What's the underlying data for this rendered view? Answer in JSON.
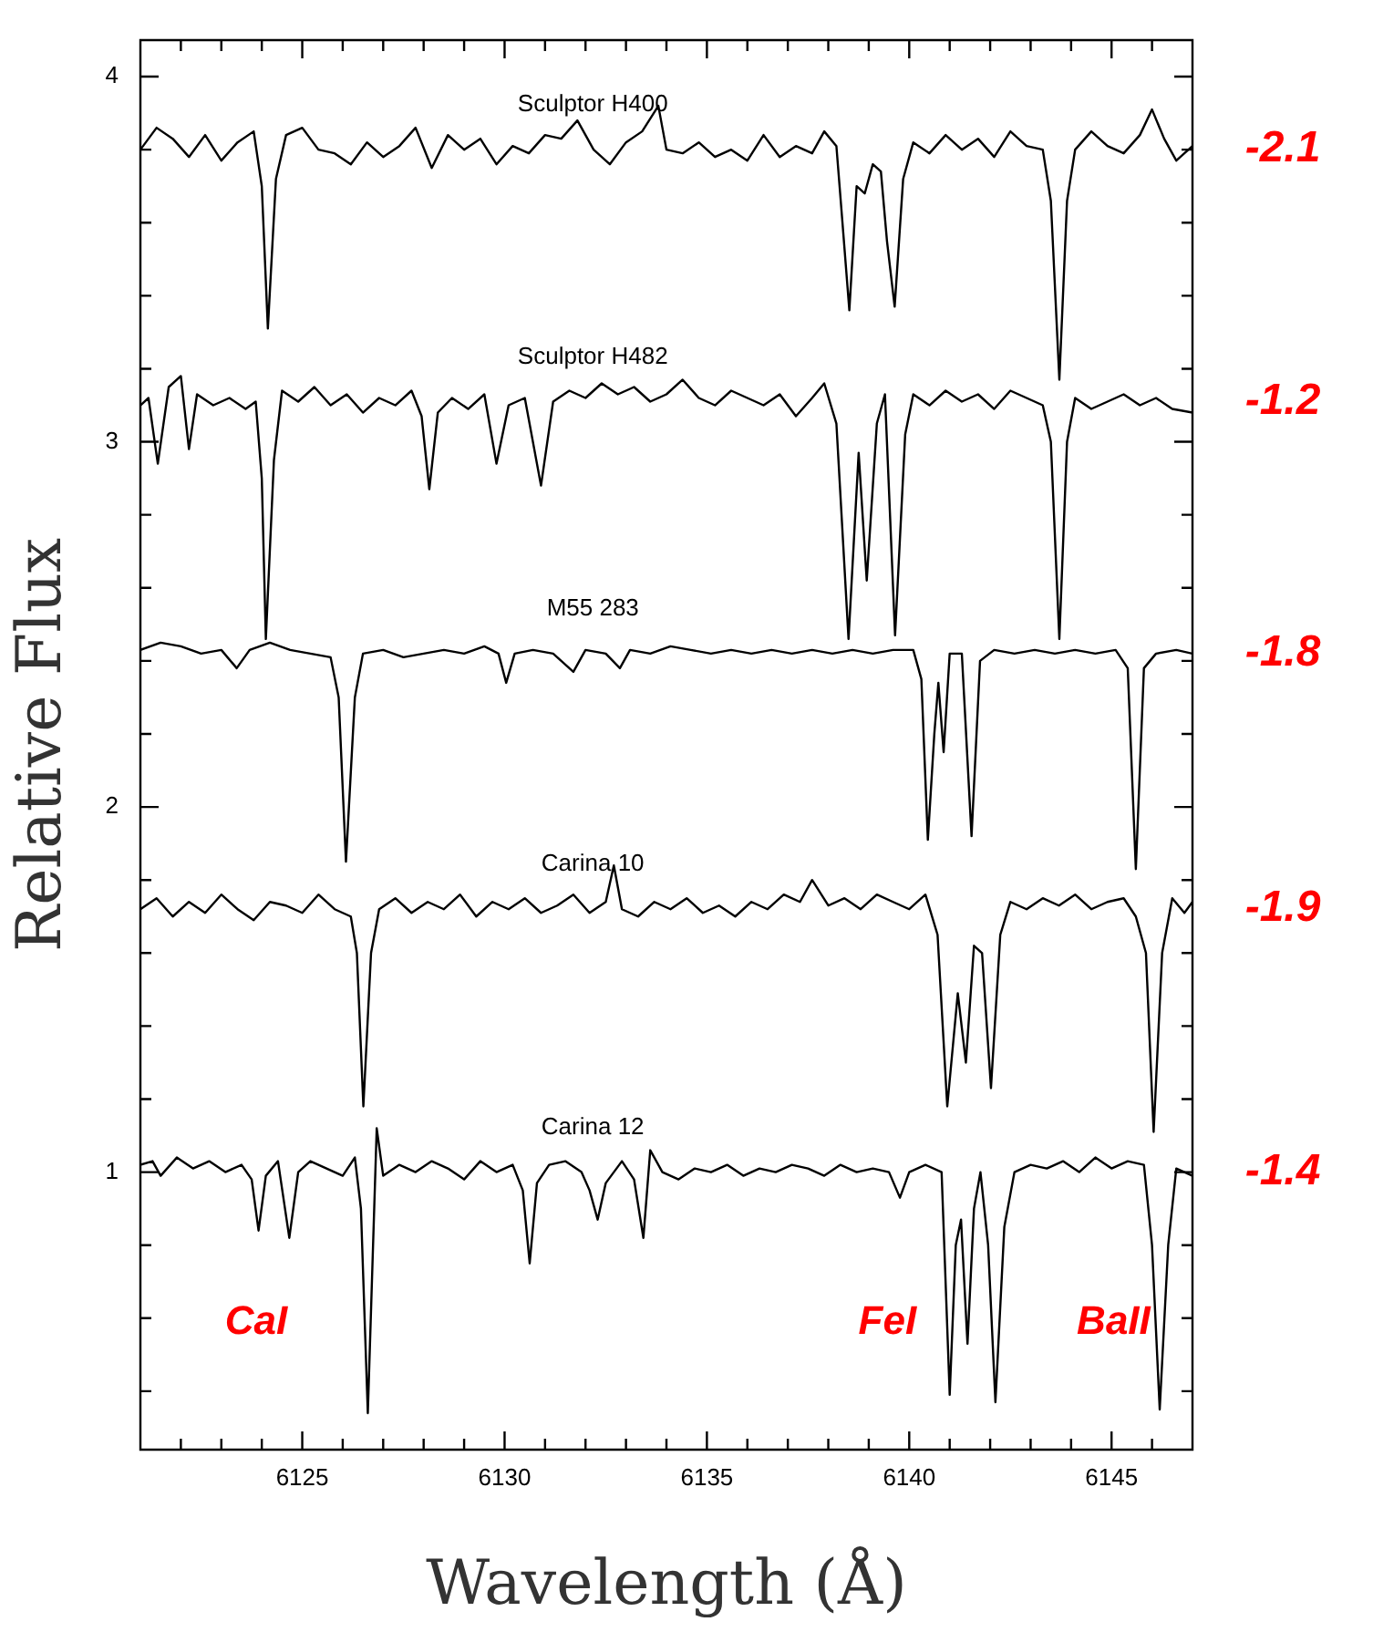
{
  "chart_data": {
    "type": "line",
    "xlabel": "Wavelength (Å)",
    "ylabel": "Relative Flux",
    "xlim": [
      6121,
      6147
    ],
    "ylim": [
      0.24,
      4.1
    ],
    "xticks": [
      {
        "value": 6122,
        "label": null
      },
      {
        "value": 6123,
        "label": null
      },
      {
        "value": 6124,
        "label": null
      },
      6125,
      {
        "value": 6126,
        "label": null
      },
      {
        "value": 6127,
        "label": null
      },
      {
        "value": 6128,
        "label": null
      },
      {
        "value": 6129,
        "label": null
      },
      6130,
      {
        "value": 6131,
        "label": null
      },
      {
        "value": 6132,
        "label": null
      },
      {
        "value": 6133,
        "label": null
      },
      {
        "value": 6134,
        "label": null
      },
      6135,
      {
        "value": 6136,
        "label": null
      },
      {
        "value": 6137,
        "label": null
      },
      {
        "value": 6138,
        "label": null
      },
      {
        "value": 6139,
        "label": null
      },
      6140,
      {
        "value": 6141,
        "label": null
      },
      {
        "value": 6142,
        "label": null
      },
      {
        "value": 6143,
        "label": null
      },
      {
        "value": 6144,
        "label": null
      },
      6145,
      {
        "value": 6146,
        "label": null
      }
    ],
    "yticks": [
      {
        "value": 0.4,
        "label": null
      },
      {
        "value": 0.6,
        "label": null
      },
      {
        "value": 0.8,
        "label": null
      },
      1,
      {
        "value": 1.2,
        "label": null
      },
      {
        "value": 1.4,
        "label": null
      },
      {
        "value": 1.6,
        "label": null
      },
      {
        "value": 1.8,
        "label": null
      },
      2,
      {
        "value": 2.2,
        "label": null
      },
      {
        "value": 2.4,
        "label": null
      },
      {
        "value": 2.6,
        "label": null
      },
      {
        "value": 2.8,
        "label": null
      },
      3,
      {
        "value": 3.2,
        "label": null
      },
      {
        "value": 3.4,
        "label": null
      },
      {
        "value": 3.6,
        "label": null
      },
      {
        "value": 3.8,
        "label": null
      },
      4
    ],
    "grid": false,
    "legend": false,
    "marker": "none",
    "line_style": "solid",
    "series": [
      {
        "name": "Sculptor H400",
        "color": "#000000",
        "x": [
          6121.0,
          6121.4,
          6121.8,
          6122.2,
          6122.6,
          6123.0,
          6123.4,
          6123.8,
          6124.0,
          6124.15,
          6124.35,
          6124.6,
          6125.0,
          6125.4,
          6125.8,
          6126.2,
          6126.6,
          6127.0,
          6127.4,
          6127.8,
          6128.2,
          6128.6,
          6129.0,
          6129.4,
          6129.8,
          6130.2,
          6130.6,
          6131.0,
          6131.4,
          6131.8,
          6132.2,
          6132.6,
          6133.0,
          6133.4,
          6133.8,
          6134.0,
          6134.4,
          6134.8,
          6135.2,
          6135.6,
          6136.0,
          6136.4,
          6136.8,
          6137.2,
          6137.6,
          6137.9,
          6138.2,
          6138.35,
          6138.52,
          6138.7,
          6138.9,
          6139.1,
          6139.3,
          6139.45,
          6139.64,
          6139.85,
          6140.1,
          6140.5,
          6140.9,
          6141.3,
          6141.7,
          6142.1,
          6142.5,
          6142.9,
          6143.3,
          6143.5,
          6143.71,
          6143.9,
          6144.1,
          6144.5,
          6144.9,
          6145.3,
          6145.7,
          6146.0,
          6146.3,
          6146.6,
          6147.0
        ],
        "values": [
          3.8,
          3.86,
          3.83,
          3.78,
          3.84,
          3.77,
          3.82,
          3.85,
          3.7,
          3.31,
          3.72,
          3.84,
          3.86,
          3.8,
          3.79,
          3.76,
          3.82,
          3.78,
          3.81,
          3.86,
          3.75,
          3.84,
          3.8,
          3.83,
          3.76,
          3.81,
          3.79,
          3.84,
          3.83,
          3.88,
          3.8,
          3.76,
          3.82,
          3.85,
          3.92,
          3.8,
          3.79,
          3.82,
          3.78,
          3.8,
          3.77,
          3.84,
          3.78,
          3.81,
          3.79,
          3.85,
          3.81,
          3.6,
          3.36,
          3.7,
          3.68,
          3.76,
          3.74,
          3.55,
          3.37,
          3.72,
          3.82,
          3.79,
          3.84,
          3.8,
          3.83,
          3.78,
          3.85,
          3.81,
          3.8,
          3.66,
          3.17,
          3.66,
          3.8,
          3.85,
          3.81,
          3.79,
          3.84,
          3.91,
          3.83,
          3.77,
          3.81
        ]
      },
      {
        "name": "Sculptor H482",
        "color": "#000000",
        "x": [
          6121.0,
          6121.2,
          6121.43,
          6121.7,
          6122.0,
          6122.2,
          6122.4,
          6122.8,
          6123.2,
          6123.6,
          6123.85,
          6124.0,
          6124.1,
          6124.3,
          6124.5,
          6124.9,
          6125.3,
          6125.7,
          6126.1,
          6126.5,
          6126.9,
          6127.3,
          6127.7,
          6127.95,
          6128.14,
          6128.35,
          6128.7,
          6129.1,
          6129.5,
          6129.8,
          6130.1,
          6130.5,
          6130.9,
          6131.2,
          6131.6,
          6132.0,
          6132.4,
          6132.8,
          6133.2,
          6133.6,
          6134.0,
          6134.4,
          6134.8,
          6135.2,
          6135.6,
          6136.0,
          6136.4,
          6136.8,
          6137.2,
          6137.6,
          6137.9,
          6138.2,
          6138.5,
          6138.75,
          6138.95,
          6139.2,
          6139.4,
          6139.65,
          6139.9,
          6140.1,
          6140.5,
          6140.9,
          6141.3,
          6141.7,
          6142.1,
          6142.5,
          6142.9,
          6143.3,
          6143.5,
          6143.71,
          6143.9,
          6144.1,
          6144.5,
          6144.9,
          6145.3,
          6145.7,
          6146.1,
          6146.5,
          6147.0
        ],
        "values": [
          3.1,
          3.12,
          2.94,
          3.15,
          3.18,
          2.98,
          3.13,
          3.1,
          3.12,
          3.09,
          3.11,
          2.9,
          2.46,
          2.95,
          3.14,
          3.11,
          3.15,
          3.1,
          3.13,
          3.08,
          3.12,
          3.1,
          3.14,
          3.07,
          2.87,
          3.08,
          3.12,
          3.09,
          3.13,
          2.94,
          3.1,
          3.12,
          2.88,
          3.11,
          3.14,
          3.12,
          3.16,
          3.13,
          3.15,
          3.11,
          3.13,
          3.17,
          3.12,
          3.1,
          3.14,
          3.12,
          3.1,
          3.13,
          3.07,
          3.12,
          3.16,
          3.05,
          2.46,
          2.97,
          2.62,
          3.05,
          3.13,
          2.47,
          3.02,
          3.13,
          3.1,
          3.14,
          3.11,
          3.13,
          3.09,
          3.14,
          3.12,
          3.1,
          3.0,
          2.46,
          3.0,
          3.12,
          3.09,
          3.11,
          3.13,
          3.1,
          3.12,
          3.09,
          3.08
        ]
      },
      {
        "name": "M55 283",
        "color": "#000000",
        "x": [
          6121.0,
          6121.5,
          6122.0,
          6122.5,
          6123.0,
          6123.38,
          6123.7,
          6124.2,
          6124.7,
          6125.2,
          6125.7,
          6125.9,
          6126.08,
          6126.3,
          6126.5,
          6127.0,
          6127.5,
          6128.0,
          6128.5,
          6129.0,
          6129.5,
          6129.85,
          6130.04,
          6130.25,
          6130.7,
          6131.2,
          6131.7,
          6132.0,
          6132.5,
          6132.85,
          6133.1,
          6133.6,
          6134.1,
          6134.6,
          6135.1,
          6135.6,
          6136.1,
          6136.6,
          6137.1,
          6137.6,
          6138.1,
          6138.6,
          6139.1,
          6139.6,
          6140.1,
          6140.3,
          6140.46,
          6140.62,
          6140.72,
          6140.85,
          6141.0,
          6141.3,
          6141.54,
          6141.75,
          6142.1,
          6142.6,
          6143.1,
          6143.6,
          6144.1,
          6144.6,
          6145.1,
          6145.4,
          6145.6,
          6145.8,
          6146.1,
          6146.6,
          6147.0
        ],
        "values": [
          2.43,
          2.45,
          2.44,
          2.42,
          2.43,
          2.38,
          2.43,
          2.45,
          2.43,
          2.42,
          2.41,
          2.3,
          1.85,
          2.3,
          2.42,
          2.43,
          2.41,
          2.42,
          2.43,
          2.42,
          2.44,
          2.42,
          2.34,
          2.42,
          2.43,
          2.42,
          2.37,
          2.43,
          2.42,
          2.38,
          2.43,
          2.42,
          2.44,
          2.43,
          2.42,
          2.43,
          2.42,
          2.43,
          2.42,
          2.43,
          2.42,
          2.43,
          2.42,
          2.43,
          2.43,
          2.35,
          1.91,
          2.2,
          2.34,
          2.15,
          2.42,
          2.42,
          1.92,
          2.4,
          2.43,
          2.42,
          2.43,
          2.42,
          2.43,
          2.42,
          2.43,
          2.38,
          1.83,
          2.38,
          2.42,
          2.43,
          2.42
        ]
      },
      {
        "name": "Carina 10",
        "color": "#000000",
        "x": [
          6121.0,
          6121.4,
          6121.8,
          6122.2,
          6122.6,
          6123.0,
          6123.4,
          6123.8,
          6124.2,
          6124.6,
          6125.0,
          6125.4,
          6125.8,
          6126.2,
          6126.35,
          6126.51,
          6126.7,
          6126.9,
          6127.3,
          6127.7,
          6128.1,
          6128.5,
          6128.9,
          6129.3,
          6129.7,
          6130.1,
          6130.5,
          6130.9,
          6131.3,
          6131.7,
          6132.1,
          6132.5,
          6132.7,
          6132.9,
          6133.3,
          6133.7,
          6134.1,
          6134.5,
          6134.9,
          6135.3,
          6135.7,
          6136.1,
          6136.5,
          6136.9,
          6137.3,
          6137.6,
          6138.0,
          6138.4,
          6138.8,
          6139.2,
          6139.6,
          6140.0,
          6140.4,
          6140.7,
          6140.94,
          6141.2,
          6141.4,
          6141.6,
          6141.8,
          6142.02,
          6142.25,
          6142.5,
          6142.9,
          6143.3,
          6143.7,
          6144.1,
          6144.5,
          6144.9,
          6145.3,
          6145.6,
          6145.85,
          6146.04,
          6146.25,
          6146.5,
          6146.8,
          6147.0
        ],
        "values": [
          1.72,
          1.75,
          1.7,
          1.74,
          1.71,
          1.76,
          1.72,
          1.69,
          1.74,
          1.73,
          1.71,
          1.76,
          1.72,
          1.7,
          1.6,
          1.18,
          1.6,
          1.72,
          1.75,
          1.71,
          1.74,
          1.72,
          1.76,
          1.7,
          1.74,
          1.72,
          1.75,
          1.71,
          1.73,
          1.76,
          1.71,
          1.74,
          1.84,
          1.72,
          1.7,
          1.74,
          1.72,
          1.75,
          1.71,
          1.73,
          1.7,
          1.74,
          1.72,
          1.76,
          1.74,
          1.8,
          1.73,
          1.75,
          1.72,
          1.76,
          1.74,
          1.72,
          1.76,
          1.65,
          1.18,
          1.49,
          1.3,
          1.62,
          1.6,
          1.23,
          1.65,
          1.74,
          1.72,
          1.75,
          1.73,
          1.76,
          1.72,
          1.74,
          1.75,
          1.7,
          1.6,
          1.11,
          1.6,
          1.75,
          1.71,
          1.74
        ]
      },
      {
        "name": "Carina 12",
        "color": "#000000",
        "x": [
          6121.0,
          6121.3,
          6121.5,
          6121.9,
          6122.3,
          6122.7,
          6123.1,
          6123.5,
          6123.75,
          6123.92,
          6124.1,
          6124.4,
          6124.68,
          6124.9,
          6125.2,
          6125.6,
          6126.0,
          6126.3,
          6126.45,
          6126.62,
          6126.84,
          6127.0,
          6127.4,
          6127.8,
          6128.2,
          6128.6,
          6129.0,
          6129.4,
          6129.8,
          6130.2,
          6130.45,
          6130.62,
          6130.8,
          6131.1,
          6131.5,
          6131.9,
          6132.1,
          6132.3,
          6132.5,
          6132.9,
          6133.2,
          6133.43,
          6133.6,
          6133.9,
          6134.3,
          6134.7,
          6135.1,
          6135.5,
          6135.9,
          6136.3,
          6136.7,
          6137.1,
          6137.5,
          6137.9,
          6138.3,
          6138.7,
          6139.1,
          6139.5,
          6139.77,
          6140.0,
          6140.4,
          6140.8,
          6141.0,
          6141.15,
          6141.28,
          6141.44,
          6141.6,
          6141.76,
          6141.95,
          6142.13,
          6142.35,
          6142.6,
          6143.0,
          6143.4,
          6143.8,
          6144.2,
          6144.6,
          6145.0,
          6145.4,
          6145.8,
          6146.0,
          6146.19,
          6146.4,
          6146.6,
          6146.8,
          6147.0
        ],
        "values": [
          1.02,
          1.03,
          0.99,
          1.04,
          1.01,
          1.03,
          1.0,
          1.02,
          0.98,
          0.84,
          0.99,
          1.03,
          0.82,
          1.0,
          1.03,
          1.01,
          0.99,
          1.04,
          0.9,
          0.34,
          1.12,
          0.99,
          1.02,
          1.0,
          1.03,
          1.01,
          0.98,
          1.03,
          1.0,
          1.02,
          0.95,
          0.75,
          0.97,
          1.02,
          1.03,
          1.0,
          0.95,
          0.87,
          0.97,
          1.03,
          0.98,
          0.82,
          1.06,
          1.0,
          0.98,
          1.01,
          1.0,
          1.02,
          0.99,
          1.01,
          1.0,
          1.02,
          1.01,
          0.99,
          1.02,
          1.0,
          1.01,
          1.0,
          0.93,
          1.0,
          1.02,
          1.0,
          0.39,
          0.8,
          0.87,
          0.53,
          0.9,
          1.0,
          0.8,
          0.37,
          0.85,
          1.0,
          1.02,
          1.01,
          1.03,
          1.0,
          1.04,
          1.01,
          1.03,
          1.02,
          0.8,
          0.35,
          0.8,
          1.01,
          1.0,
          0.99
        ]
      }
    ],
    "annotations": [
      "-2.1",
      "-1.2",
      "-1.8",
      "-1.9",
      "-1.4",
      "CaI",
      "FeI",
      "BaII"
    ]
  }
}
